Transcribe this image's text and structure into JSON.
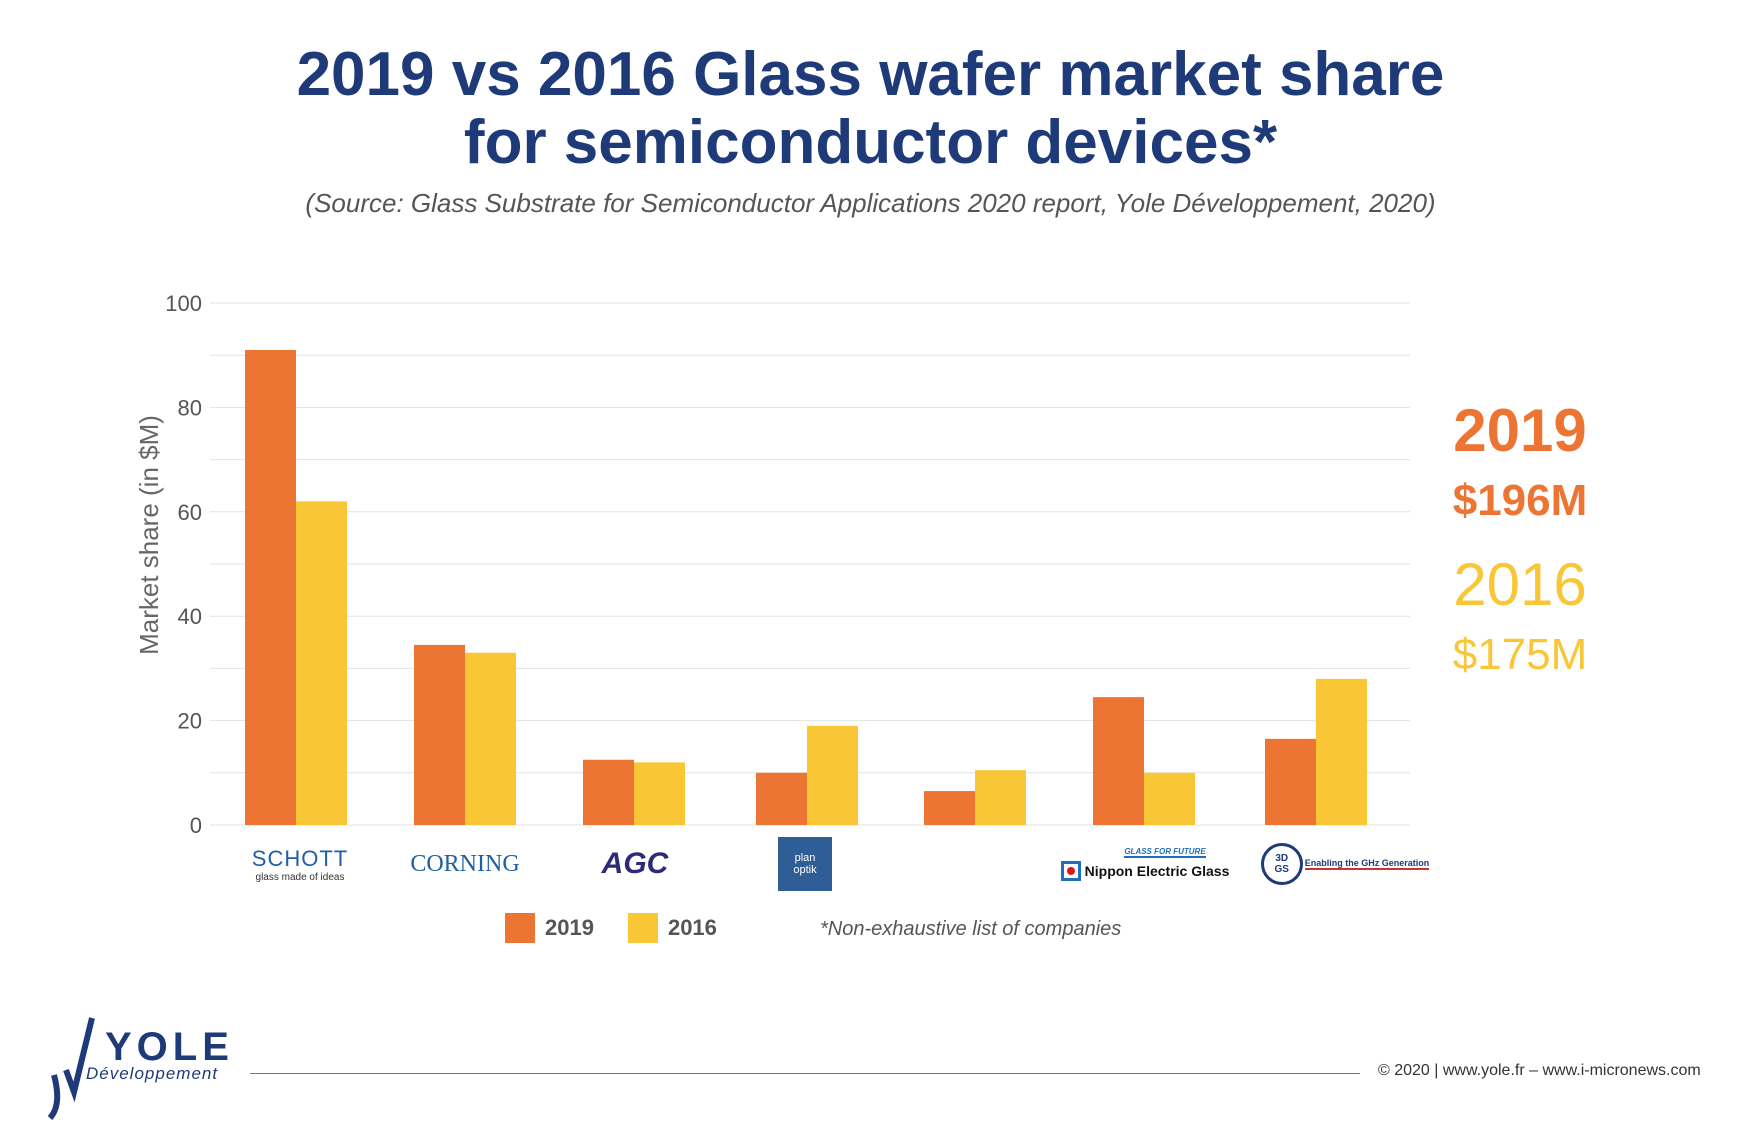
{
  "header": {
    "title_line1": "2019 vs 2016 Glass wafer market share",
    "title_line2": "for semiconductor devices*",
    "source": "(Source: Glass Substrate for Semiconductor Applications 2020 report, Yole Développement, 2020)"
  },
  "totals": {
    "year_2019": "2019",
    "total_2019": "$196M",
    "year_2016": "2016",
    "total_2016": "$175M"
  },
  "legend": {
    "label_2019": "2019",
    "label_2016": "2016"
  },
  "note": "*Non-exhaustive list of companies",
  "companies": {
    "schott": "SCHOTT",
    "schott_tag": "glass made of ideas",
    "corning": "CORNING",
    "agc": "AGC",
    "planoptik": "plan optik",
    "neg_tag": "GLASS FOR FUTURE",
    "neg": "Nippon Electric Glass",
    "tdgs": "3D GS",
    "tdgs_tag": "Enabling the GHz Generation"
  },
  "footer": {
    "copyright": "© 2020 | www.yole.fr – www.i-micronews.com",
    "logo_word": "YOLE",
    "logo_sub": "Développement"
  },
  "colors": {
    "c2019": "#ed7533",
    "c2016": "#f9c635",
    "navy": "#1f3a78"
  },
  "chart_data": {
    "type": "bar",
    "title": "2019 vs 2016 Glass wafer market share for semiconductor devices*",
    "xlabel": "",
    "ylabel": "Market share (in $M)",
    "ylim": [
      0,
      100
    ],
    "yticks": [
      0,
      20,
      40,
      60,
      80,
      100
    ],
    "gridlines": true,
    "categories": [
      "SCHOTT",
      "CORNING",
      "AGC",
      "Plan Optik",
      "",
      "Nippon Electric Glass",
      "3D GS"
    ],
    "series": [
      {
        "name": "2019",
        "color": "#ed7533",
        "values": [
          91,
          34.5,
          12.5,
          10,
          6.5,
          24.5,
          16.5
        ]
      },
      {
        "name": "2016",
        "color": "#f9c635",
        "values": [
          62,
          33,
          12,
          19,
          10.5,
          10,
          28
        ]
      }
    ]
  }
}
